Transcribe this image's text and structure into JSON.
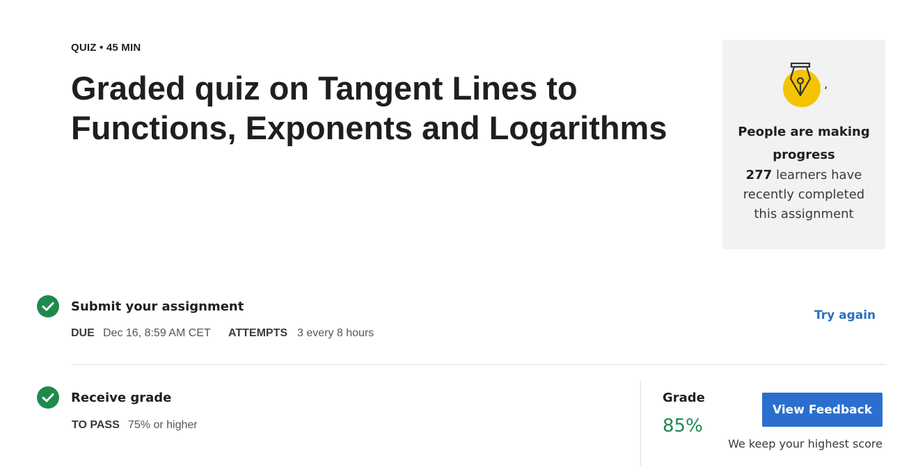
{
  "header": {
    "eyebrow": "QUIZ • 45 MIN",
    "title": "Graded quiz on Tangent Lines to Functions, Exponents and Logarithms"
  },
  "progress_card": {
    "icon": "fountain-pen-icon",
    "heading": "People are making progress",
    "count": "277",
    "body": " learners have recently completed this assignment"
  },
  "submit_step": {
    "title": "Submit your assignment",
    "due_label": "DUE",
    "due_value": "Dec 16, 8:59 AM CET",
    "attempts_label": "ATTEMPTS",
    "attempts_value": "3 every 8 hours",
    "action_label": "Try again",
    "status_icon": "check-circle-icon"
  },
  "grade_step": {
    "title": "Receive grade",
    "to_pass_label": "TO PASS",
    "to_pass_value": "75% or higher",
    "grade_label": "Grade",
    "grade_value": "85%",
    "button_label": "View Feedback",
    "note": "We keep your highest score",
    "status_icon": "check-circle-icon"
  },
  "colors": {
    "success": "#1e8a4c",
    "link": "#2a6fbf",
    "primary_button": "#2a6fcf",
    "card_bg": "#f2f2f2",
    "accent_yellow": "#f5c400"
  }
}
